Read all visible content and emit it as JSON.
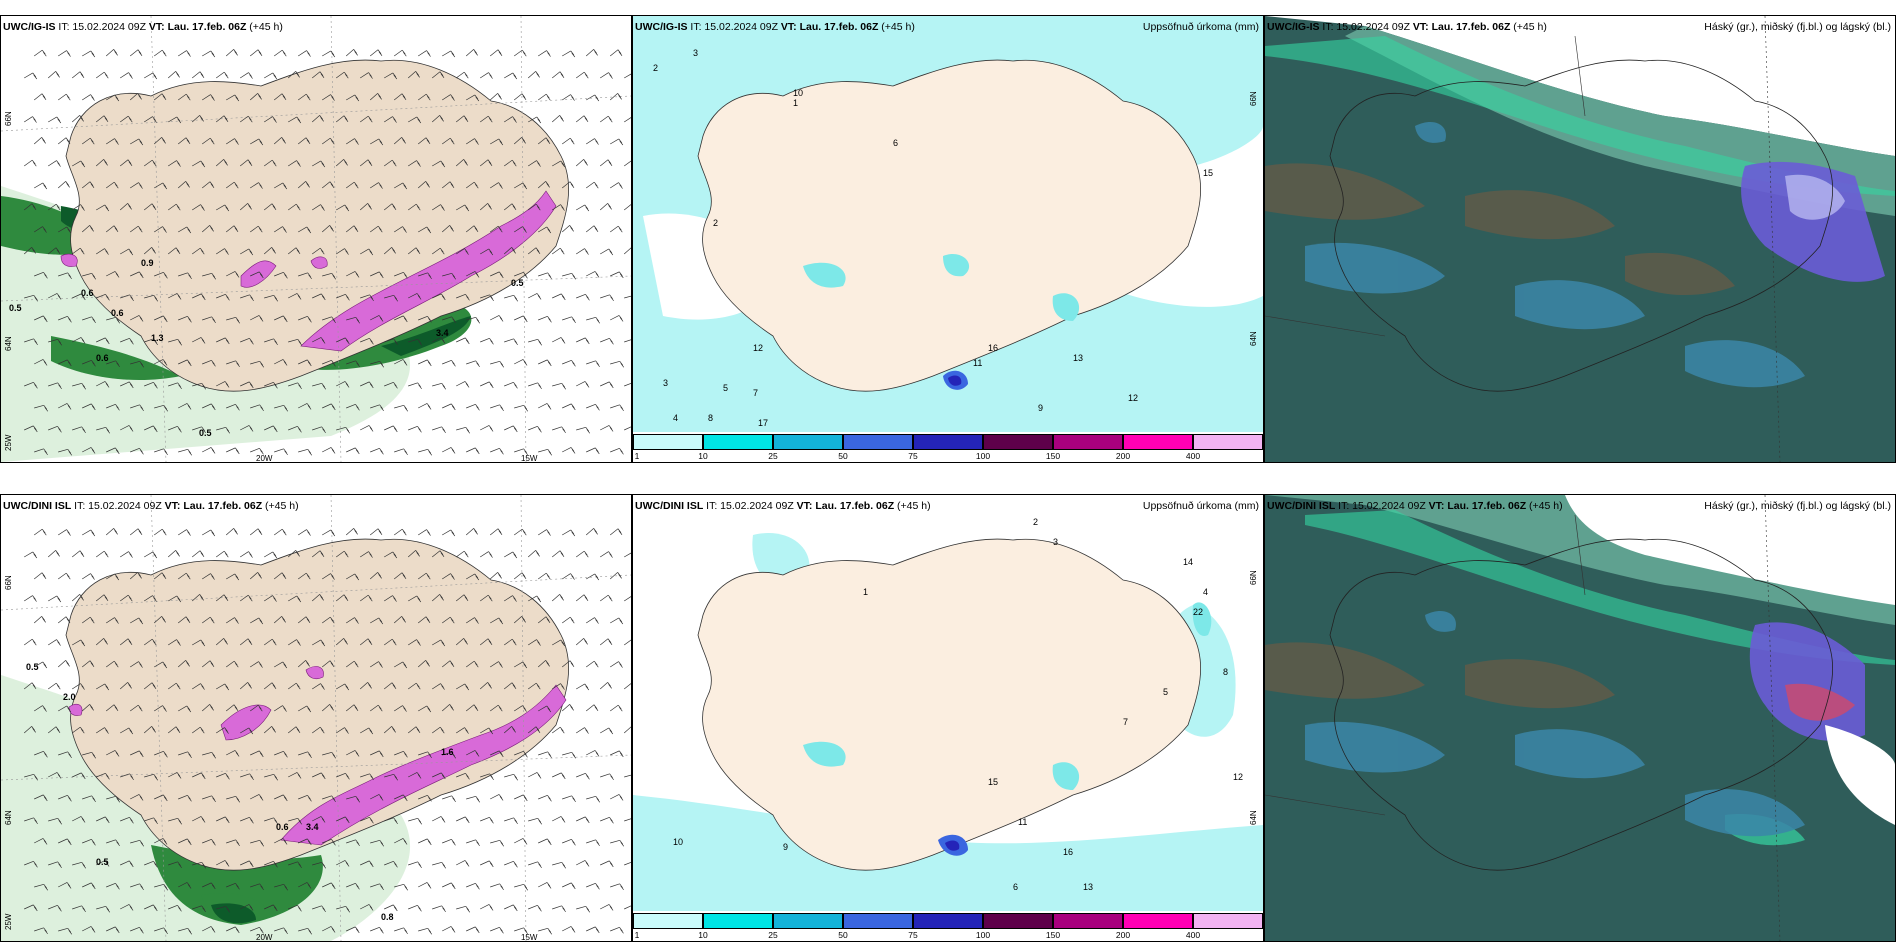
{
  "panels": [
    {
      "id": "ig-wind",
      "model": "UWC/IG-IS",
      "it": "IT: 15.02.2024 09Z",
      "vt_label": "VT:",
      "vt": "Lau. 17.feb. 06Z",
      "lead": "(+45 h)",
      "title_right": "",
      "axis_labels": [
        "66N",
        "64N",
        "25W",
        "20W",
        "15W"
      ],
      "values": [
        "0.5",
        "0.6",
        "0.6",
        "0.9",
        "0.5",
        "0.5",
        "3.4",
        "0.6",
        "1.3"
      ]
    },
    {
      "id": "ig-precip",
      "model": "UWC/IG-IS",
      "it": "IT: 15.02.2024 09Z",
      "vt_label": "VT:",
      "vt": "Lau. 17.feb. 06Z",
      "lead": "(+45 h)",
      "title_right": "Uppsöfnuð úrkoma (mm)",
      "axis_labels": [
        "66N",
        "64N"
      ],
      "values": [
        "2",
        "3",
        "1",
        "2",
        "3",
        "10",
        "12",
        "5",
        "7",
        "17",
        "4",
        "8",
        "9",
        "11",
        "16",
        "13",
        "15",
        "6",
        "12"
      ]
    },
    {
      "id": "ig-cloud",
      "model": "UWC/IG-IS",
      "it": "IT: 15.02.2024 09Z",
      "vt_label": "VT:",
      "vt": "Lau. 17.feb. 06Z",
      "lead": "(+45 h)",
      "title_right": "Háský (gr.), miðský (fj.bl.) og lágský (bl.)",
      "axis_labels": [],
      "values": []
    },
    {
      "id": "dini-wind",
      "model": "UWC/DINI ISL",
      "it": "IT: 15.02.2024 09Z",
      "vt_label": "VT:",
      "vt": "Lau. 17.feb. 06Z",
      "lead": "(+45 h)",
      "title_right": "",
      "axis_labels": [
        "66N",
        "64N",
        "25W",
        "20W",
        "15W"
      ],
      "values": [
        "0.5",
        "0.5",
        "0.6",
        "0.8",
        "3.4",
        "1.6",
        "2.0"
      ]
    },
    {
      "id": "dini-precip",
      "model": "UWC/DINI ISL",
      "it": "IT: 15.02.2024 09Z",
      "vt_label": "VT:",
      "vt": "Lau. 17.feb. 06Z",
      "lead": "(+45 h)",
      "title_right": "Uppsöfnuð úrkoma (mm)",
      "axis_labels": [
        "66N",
        "64N"
      ],
      "values": [
        "2",
        "3",
        "1",
        "4",
        "5",
        "7",
        "9",
        "6",
        "8",
        "11",
        "12",
        "13",
        "14",
        "15",
        "22",
        "10",
        "16"
      ]
    },
    {
      "id": "dini-cloud",
      "model": "UWC/DINI ISL",
      "it": "IT: 15.02.2024 09Z",
      "vt_label": "VT:",
      "vt": "Lau. 17.feb. 06Z",
      "lead": "(+45 h)",
      "title_right": "Háský (gr.), miðský (fj.bl.) og lágský (bl.)",
      "axis_labels": [],
      "values": []
    }
  ],
  "colorbar": {
    "ticks": [
      "1",
      "10",
      "25",
      "50",
      "75",
      "100",
      "150",
      "200",
      "400"
    ],
    "colors": [
      "#c9fbfb",
      "#00e5e5",
      "#13b3d9",
      "#3a66e0",
      "#2424b8",
      "#5e004a",
      "#a8007e",
      "#ff00b4",
      "#f2b3f2"
    ]
  }
}
